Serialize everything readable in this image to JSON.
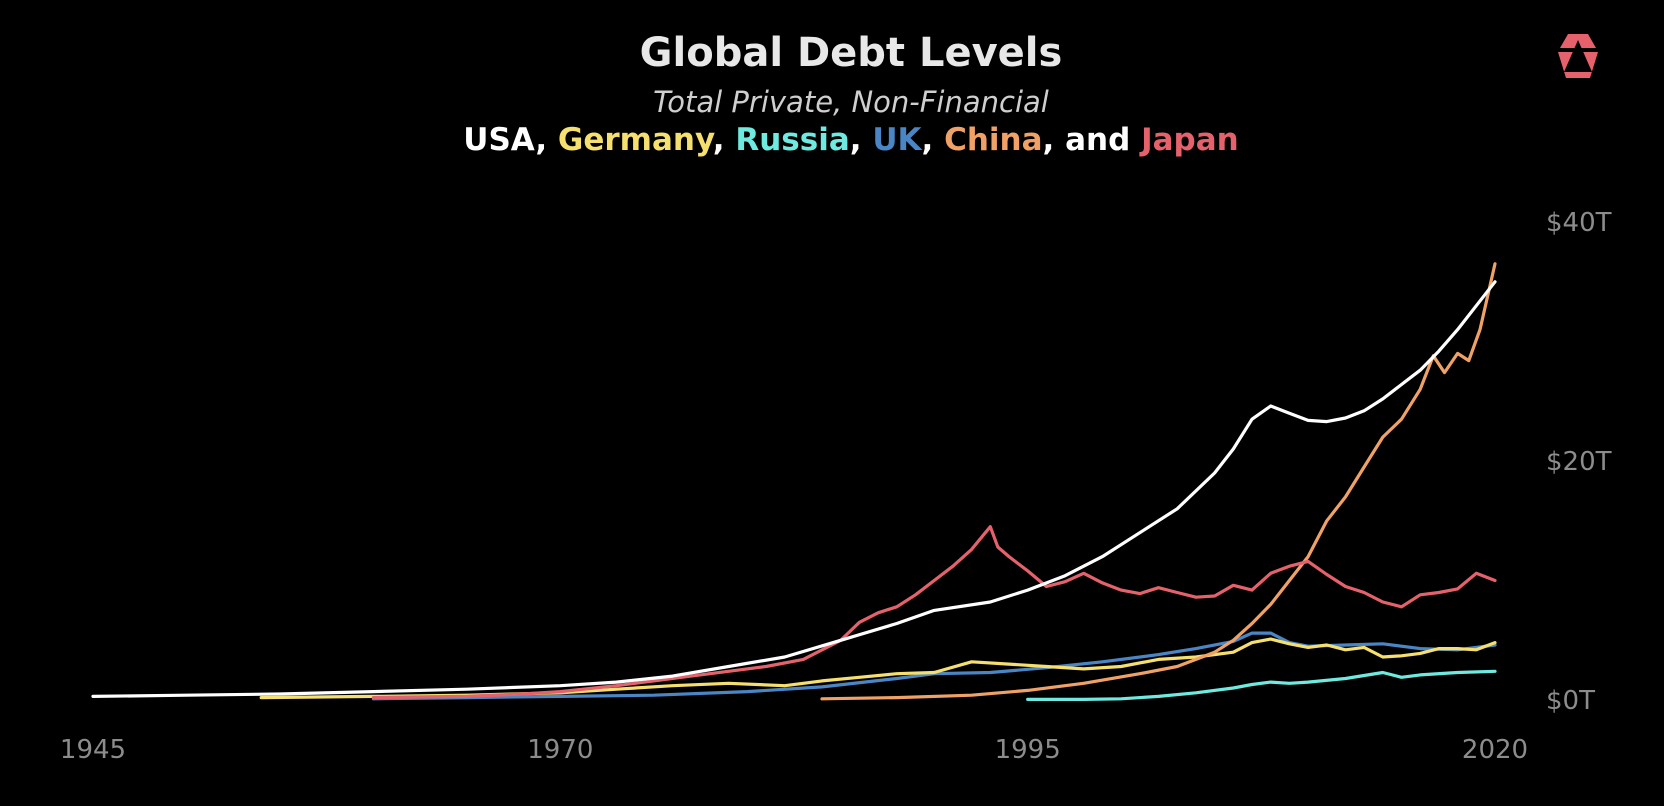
{
  "chart_data": {
    "type": "line",
    "title": "Global Debt Levels",
    "subtitle": "Total Private, Non-Financial",
    "legend_text": {
      "sep_comma": ", ",
      "sep_and": ", and "
    },
    "x_ticks": [
      "1945",
      "1970",
      "1995",
      "2020"
    ],
    "y_ticks": [
      "$40T",
      "$20T",
      "$0T"
    ],
    "y_tick_values": [
      40,
      20,
      0
    ],
    "x_tick_values": [
      1945,
      1970,
      1995,
      2020
    ],
    "xlim": [
      1945,
      2020
    ],
    "ylim": [
      0,
      40
    ],
    "grid": false,
    "legend_placement": "top-center (in subtitle line)",
    "series": [
      {
        "name": "USA",
        "color": "#ffffff",
        "points": [
          [
            1945,
            0.3
          ],
          [
            1950,
            0.4
          ],
          [
            1955,
            0.5
          ],
          [
            1960,
            0.7
          ],
          [
            1965,
            0.9
          ],
          [
            1970,
            1.2
          ],
          [
            1973,
            1.5
          ],
          [
            1976,
            2.0
          ],
          [
            1979,
            2.8
          ],
          [
            1982,
            3.6
          ],
          [
            1985,
            5.0
          ],
          [
            1988,
            6.4
          ],
          [
            1990,
            7.5
          ],
          [
            1993,
            8.2
          ],
          [
            1995,
            9.2
          ],
          [
            1997,
            10.4
          ],
          [
            1999,
            12.0
          ],
          [
            2001,
            14.0
          ],
          [
            2003,
            16.0
          ],
          [
            2005,
            19.0
          ],
          [
            2006,
            21.0
          ],
          [
            2007,
            23.5
          ],
          [
            2008,
            24.6
          ],
          [
            2009,
            24.0
          ],
          [
            2010,
            23.4
          ],
          [
            2011,
            23.3
          ],
          [
            2012,
            23.6
          ],
          [
            2013,
            24.2
          ],
          [
            2014,
            25.2
          ],
          [
            2015,
            26.4
          ],
          [
            2016,
            27.6
          ],
          [
            2017,
            29.2
          ],
          [
            2018,
            31.0
          ],
          [
            2019,
            33.0
          ],
          [
            2020,
            35.0
          ]
        ]
      },
      {
        "name": "Germany",
        "color": "#f5df6e",
        "points": [
          [
            1954,
            0.2
          ],
          [
            1960,
            0.3
          ],
          [
            1965,
            0.4
          ],
          [
            1970,
            0.6
          ],
          [
            1973,
            0.9
          ],
          [
            1976,
            1.2
          ],
          [
            1979,
            1.4
          ],
          [
            1982,
            1.2
          ],
          [
            1984,
            1.6
          ],
          [
            1986,
            1.9
          ],
          [
            1988,
            2.2
          ],
          [
            1990,
            2.3
          ],
          [
            1992,
            3.2
          ],
          [
            1994,
            3.0
          ],
          [
            1996,
            2.8
          ],
          [
            1998,
            2.6
          ],
          [
            2000,
            2.8
          ],
          [
            2002,
            3.4
          ],
          [
            2004,
            3.6
          ],
          [
            2006,
            4.0
          ],
          [
            2007,
            4.8
          ],
          [
            2008,
            5.1
          ],
          [
            2009,
            4.7
          ],
          [
            2010,
            4.4
          ],
          [
            2011,
            4.6
          ],
          [
            2012,
            4.2
          ],
          [
            2013,
            4.4
          ],
          [
            2014,
            3.6
          ],
          [
            2015,
            3.7
          ],
          [
            2016,
            3.9
          ],
          [
            2017,
            4.3
          ],
          [
            2018,
            4.3
          ],
          [
            2019,
            4.2
          ],
          [
            2020,
            4.8
          ]
        ]
      },
      {
        "name": "Russia",
        "color": "#6eeae0",
        "points": [
          [
            1995,
            0.05
          ],
          [
            1998,
            0.05
          ],
          [
            2000,
            0.1
          ],
          [
            2002,
            0.3
          ],
          [
            2004,
            0.6
          ],
          [
            2006,
            1.0
          ],
          [
            2007,
            1.3
          ],
          [
            2008,
            1.5
          ],
          [
            2009,
            1.4
          ],
          [
            2010,
            1.5
          ],
          [
            2012,
            1.8
          ],
          [
            2014,
            2.3
          ],
          [
            2015,
            1.9
          ],
          [
            2016,
            2.1
          ],
          [
            2018,
            2.3
          ],
          [
            2020,
            2.4
          ]
        ]
      },
      {
        "name": "UK",
        "color": "#4a86c5",
        "points": [
          [
            1960,
            0.1
          ],
          [
            1965,
            0.2
          ],
          [
            1970,
            0.3
          ],
          [
            1975,
            0.4
          ],
          [
            1980,
            0.7
          ],
          [
            1984,
            1.1
          ],
          [
            1988,
            1.8
          ],
          [
            1990,
            2.2
          ],
          [
            1993,
            2.3
          ],
          [
            1996,
            2.7
          ],
          [
            1999,
            3.2
          ],
          [
            2002,
            3.8
          ],
          [
            2004,
            4.3
          ],
          [
            2006,
            4.9
          ],
          [
            2007,
            5.6
          ],
          [
            2008,
            5.6
          ],
          [
            2009,
            4.8
          ],
          [
            2010,
            4.5
          ],
          [
            2012,
            4.6
          ],
          [
            2014,
            4.7
          ],
          [
            2016,
            4.3
          ],
          [
            2018,
            4.2
          ],
          [
            2020,
            4.6
          ]
        ]
      },
      {
        "name": "China",
        "color": "#f0a266",
        "points": [
          [
            1984,
            0.1
          ],
          [
            1988,
            0.2
          ],
          [
            1992,
            0.4
          ],
          [
            1995,
            0.8
          ],
          [
            1998,
            1.4
          ],
          [
            2001,
            2.2
          ],
          [
            2003,
            2.8
          ],
          [
            2005,
            4.0
          ],
          [
            2006,
            5.0
          ],
          [
            2007,
            6.4
          ],
          [
            2008,
            8.0
          ],
          [
            2009,
            10.0
          ],
          [
            2010,
            12.0
          ],
          [
            2011,
            15.0
          ],
          [
            2012,
            17.0
          ],
          [
            2013,
            19.5
          ],
          [
            2014,
            22.0
          ],
          [
            2015,
            23.5
          ],
          [
            2016,
            26.0
          ],
          [
            2016.7,
            28.8
          ],
          [
            2017.3,
            27.4
          ],
          [
            2018,
            29.0
          ],
          [
            2018.6,
            28.4
          ],
          [
            2019.2,
            31.0
          ],
          [
            2020,
            36.5
          ]
        ]
      },
      {
        "name": "Japan",
        "color": "#e5616b",
        "points": [
          [
            1960,
            0.2
          ],
          [
            1965,
            0.3
          ],
          [
            1968,
            0.5
          ],
          [
            1970,
            0.7
          ],
          [
            1973,
            1.2
          ],
          [
            1975,
            1.6
          ],
          [
            1977,
            2.0
          ],
          [
            1979,
            2.4
          ],
          [
            1981,
            2.8
          ],
          [
            1983,
            3.4
          ],
          [
            1985,
            5.0
          ],
          [
            1986,
            6.5
          ],
          [
            1987,
            7.3
          ],
          [
            1988,
            7.8
          ],
          [
            1989,
            8.8
          ],
          [
            1990,
            10.0
          ],
          [
            1991,
            11.2
          ],
          [
            1992,
            12.6
          ],
          [
            1993,
            14.5
          ],
          [
            1993.4,
            12.8
          ],
          [
            1994,
            12.0
          ],
          [
            1995,
            10.8
          ],
          [
            1996,
            9.5
          ],
          [
            1997,
            9.9
          ],
          [
            1998,
            10.6
          ],
          [
            1999,
            9.8
          ],
          [
            2000,
            9.2
          ],
          [
            2001,
            8.9
          ],
          [
            2002,
            9.4
          ],
          [
            2003,
            9.0
          ],
          [
            2004,
            8.6
          ],
          [
            2005,
            8.7
          ],
          [
            2006,
            9.6
          ],
          [
            2007,
            9.2
          ],
          [
            2008,
            10.6
          ],
          [
            2009,
            11.2
          ],
          [
            2010,
            11.6
          ],
          [
            2011,
            10.5
          ],
          [
            2012,
            9.5
          ],
          [
            2013,
            9.0
          ],
          [
            2014,
            8.2
          ],
          [
            2015,
            7.8
          ],
          [
            2016,
            8.8
          ],
          [
            2017,
            9.0
          ],
          [
            2018,
            9.3
          ],
          [
            2019,
            10.6
          ],
          [
            2020,
            10.0
          ]
        ]
      }
    ]
  },
  "logo": {
    "name": "brand-logo",
    "color": "#e5616b"
  }
}
